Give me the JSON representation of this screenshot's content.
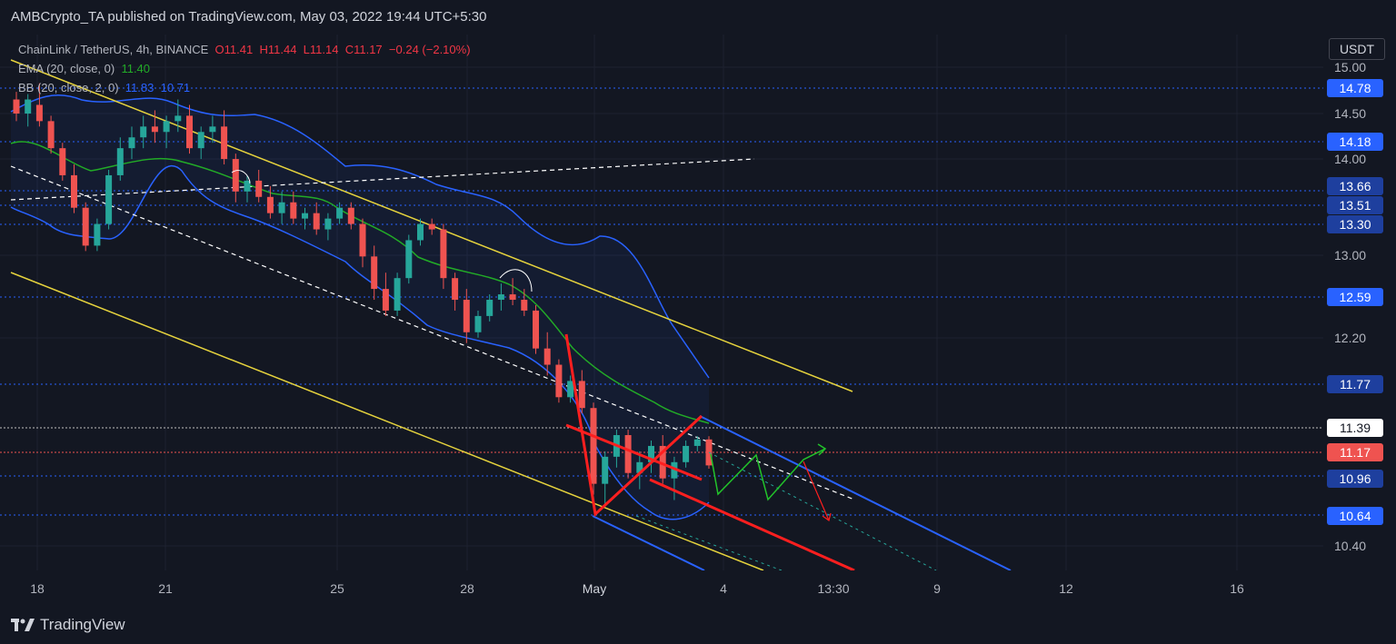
{
  "header": {
    "publisher": "AMBCrypto_TA published on TradingView.com, May 03, 2022 19:44 UTC+5:30"
  },
  "legend": {
    "symbol": "ChainLink / TetherUS, 4h, BINANCE",
    "open": "O11.41",
    "high": "H11.44",
    "low": "L11.14",
    "close": "C11.17",
    "change": "−0.24 (−2.10%)",
    "ema_label": "EMA (20, close, 0)",
    "ema_value": "11.40",
    "bb_label": "BB (20, close, 2, 0)",
    "bb_upper": "11.83",
    "bb_lower": "10.71"
  },
  "price_axis": {
    "currency": "USDT",
    "ticks": [
      "15.00",
      "14.50",
      "14.00",
      "13.00",
      "12.20",
      "10.40"
    ],
    "level_tags": [
      "14.78",
      "14.18",
      "13.66",
      "13.51",
      "13.30",
      "12.59",
      "11.77",
      "10.96",
      "10.64"
    ],
    "last_price": "11.39",
    "current_price": "11.17"
  },
  "time_axis": {
    "ticks": [
      "18",
      "21",
      "25",
      "28",
      "May",
      "4",
      "13:30",
      "9",
      "12",
      "16"
    ]
  },
  "footer": {
    "brand": "TradingView"
  },
  "colors": {
    "background": "#131722",
    "bull": "#26a69a",
    "bear": "#ef5350",
    "ema": "#22ab27",
    "bollinger": "#2962ff",
    "channel": "#e6d33d",
    "pattern": "#ff1f1f",
    "projection_up": "#22c32a",
    "level_line": "#2962ff"
  },
  "chart_data": {
    "type": "candlestick",
    "symbol": "ChainLink / TetherUS",
    "timeframe": "4h",
    "exchange": "BINANCE",
    "ylim": [
      10.2,
      15.15
    ],
    "candles_approx": [
      [
        14.55,
        14.62,
        14.35,
        14.42
      ],
      [
        14.42,
        14.6,
        14.3,
        14.55
      ],
      [
        14.5,
        14.7,
        14.3,
        14.35
      ],
      [
        14.35,
        14.4,
        14.05,
        14.1
      ],
      [
        14.1,
        14.15,
        13.8,
        13.85
      ],
      [
        13.85,
        13.95,
        13.5,
        13.55
      ],
      [
        13.55,
        13.6,
        13.15,
        13.2
      ],
      [
        13.2,
        13.45,
        13.15,
        13.4
      ],
      [
        13.4,
        13.9,
        13.35,
        13.85
      ],
      [
        13.85,
        14.2,
        13.8,
        14.1
      ],
      [
        14.1,
        14.3,
        14.0,
        14.2
      ],
      [
        14.2,
        14.4,
        14.1,
        14.3
      ],
      [
        14.3,
        14.45,
        14.15,
        14.25
      ],
      [
        14.25,
        14.4,
        14.1,
        14.35
      ],
      [
        14.35,
        14.55,
        14.25,
        14.4
      ],
      [
        14.4,
        14.5,
        14.05,
        14.1
      ],
      [
        14.1,
        14.3,
        14.0,
        14.25
      ],
      [
        14.25,
        14.4,
        14.15,
        14.3
      ],
      [
        14.3,
        14.45,
        13.95,
        14.0
      ],
      [
        14.0,
        14.05,
        13.6,
        13.7
      ],
      [
        13.7,
        13.85,
        13.6,
        13.8
      ],
      [
        13.8,
        13.9,
        13.6,
        13.65
      ],
      [
        13.65,
        13.75,
        13.45,
        13.5
      ],
      [
        13.5,
        13.7,
        13.4,
        13.6
      ],
      [
        13.6,
        13.7,
        13.4,
        13.45
      ],
      [
        13.45,
        13.55,
        13.35,
        13.5
      ],
      [
        13.5,
        13.6,
        13.3,
        13.35
      ],
      [
        13.35,
        13.5,
        13.25,
        13.45
      ],
      [
        13.45,
        13.6,
        13.4,
        13.55
      ],
      [
        13.55,
        13.6,
        13.35,
        13.4
      ],
      [
        13.4,
        13.45,
        13.0,
        13.1
      ],
      [
        13.1,
        13.2,
        12.7,
        12.8
      ],
      [
        12.8,
        12.95,
        12.55,
        12.6
      ],
      [
        12.6,
        12.95,
        12.55,
        12.9
      ],
      [
        12.9,
        13.3,
        12.85,
        13.25
      ],
      [
        13.25,
        13.45,
        13.2,
        13.4
      ],
      [
        13.4,
        13.45,
        13.3,
        13.35
      ],
      [
        13.35,
        13.4,
        12.8,
        12.9
      ],
      [
        12.9,
        12.95,
        12.6,
        12.7
      ],
      [
        12.7,
        12.8,
        12.3,
        12.4
      ],
      [
        12.4,
        12.6,
        12.35,
        12.55
      ],
      [
        12.55,
        12.75,
        12.5,
        12.7
      ],
      [
        12.7,
        12.85,
        12.6,
        12.75
      ],
      [
        12.75,
        12.9,
        12.65,
        12.7
      ],
      [
        12.7,
        12.8,
        12.55,
        12.6
      ],
      [
        12.6,
        12.65,
        12.2,
        12.25
      ],
      [
        12.25,
        12.4,
        12.0,
        12.1
      ],
      [
        12.1,
        12.15,
        11.75,
        11.8
      ],
      [
        11.8,
        12.0,
        11.75,
        11.95
      ],
      [
        11.95,
        12.05,
        11.65,
        11.7
      ],
      [
        11.7,
        11.75,
        10.9,
        11.0
      ],
      [
        11.0,
        11.3,
        10.8,
        11.25
      ],
      [
        11.25,
        11.5,
        11.15,
        11.45
      ],
      [
        11.45,
        11.5,
        11.05,
        11.1
      ],
      [
        11.1,
        11.3,
        10.95,
        11.2
      ],
      [
        11.2,
        11.4,
        11.1,
        11.35
      ],
      [
        11.35,
        11.45,
        11.0,
        11.05
      ],
      [
        11.05,
        11.25,
        10.85,
        11.2
      ],
      [
        11.2,
        11.4,
        11.15,
        11.35
      ],
      [
        11.35,
        11.44,
        11.3,
        11.41
      ],
      [
        11.41,
        11.44,
        11.14,
        11.17
      ]
    ],
    "indicators": {
      "ema": {
        "length": 20,
        "last": 11.4
      },
      "bollinger": {
        "length": 20,
        "mult": 2,
        "upper": 11.83,
        "lower": 10.71
      }
    },
    "horizontal_levels": [
      14.78,
      14.18,
      13.66,
      13.51,
      13.3,
      12.59,
      11.77,
      10.96,
      10.64
    ],
    "last_price": 11.39,
    "current_price": 11.17
  }
}
